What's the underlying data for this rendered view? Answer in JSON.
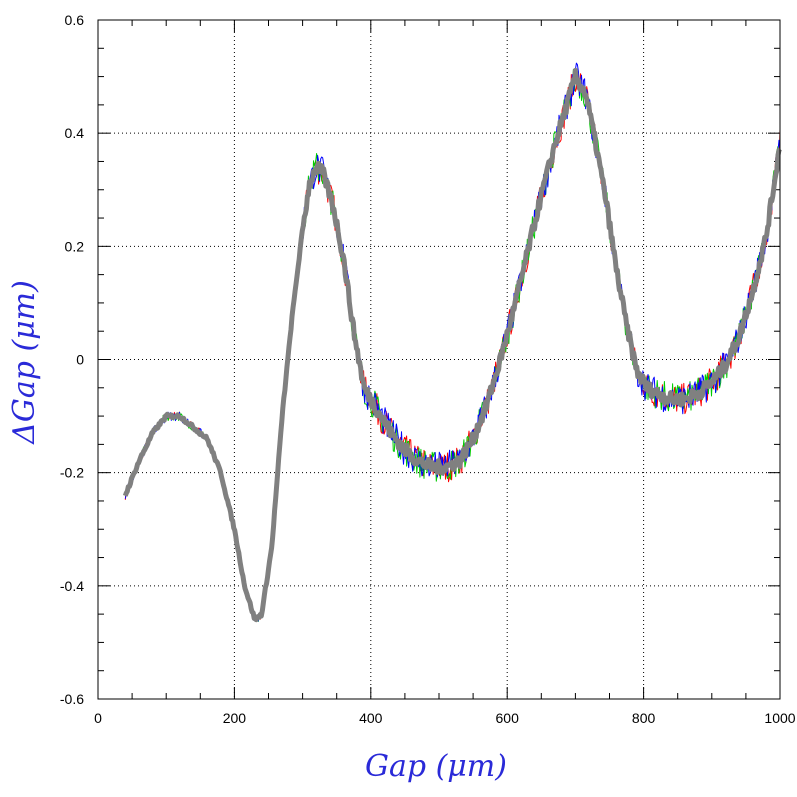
{
  "chart_data": {
    "type": "line",
    "xlabel": "Gap (μm)",
    "ylabel": "ΔGap (μm)",
    "xlim": [
      0,
      1000
    ],
    "ylim": [
      -0.6,
      0.6
    ],
    "x_ticks": [
      0,
      200,
      400,
      600,
      800,
      1000
    ],
    "y_ticks": [
      -0.6,
      -0.4,
      -0.2,
      0,
      0.2,
      0.4,
      0.6
    ],
    "x_tick_labels": [
      "0",
      "200",
      "400",
      "600",
      "800",
      "1000"
    ],
    "y_tick_labels": [
      "-0.6",
      "-0.4",
      "-0.2",
      "0",
      "0.2",
      "0.4",
      "0.6"
    ],
    "grid": true,
    "series_colors": [
      "#ff0000",
      "#00cc00",
      "#0000ff",
      "#808080"
    ],
    "series": [
      {
        "x": [
          40,
          60,
          80,
          100,
          120,
          140,
          160,
          180,
          200,
          215,
          230,
          240,
          255,
          270,
          285,
          300,
          310,
          320,
          330,
          345,
          360,
          375,
          390,
          410,
          430,
          450,
          470,
          490,
          510,
          530,
          550,
          570,
          590,
          610,
          630,
          650,
          670,
          685,
          700,
          715,
          730,
          745,
          760,
          775,
          790,
          805,
          820,
          840,
          860,
          880,
          900,
          920,
          940,
          960,
          980,
          1000
        ],
        "y": [
          -0.24,
          -0.18,
          -0.13,
          -0.1,
          -0.1,
          -0.12,
          -0.14,
          -0.2,
          -0.3,
          -0.4,
          -0.46,
          -0.45,
          -0.33,
          -0.1,
          0.08,
          0.23,
          0.31,
          0.34,
          0.33,
          0.27,
          0.18,
          0.05,
          -0.05,
          -0.09,
          -0.13,
          -0.16,
          -0.18,
          -0.19,
          -0.19,
          -0.18,
          -0.14,
          -0.08,
          0.0,
          0.09,
          0.19,
          0.29,
          0.38,
          0.44,
          0.5,
          0.47,
          0.38,
          0.28,
          0.16,
          0.06,
          -0.02,
          -0.05,
          -0.06,
          -0.07,
          -0.07,
          -0.06,
          -0.04,
          -0.01,
          0.04,
          0.12,
          0.22,
          0.38
        ]
      }
    ]
  }
}
